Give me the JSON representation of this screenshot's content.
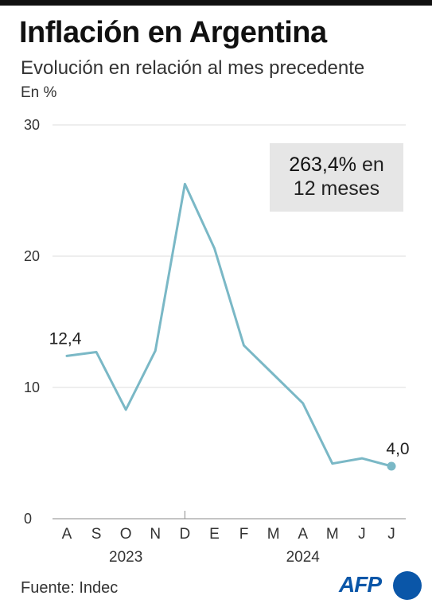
{
  "title": "Inflación en Argentina",
  "subtitle": "Evolución en relación al mes precedente",
  "unit_label": "En %",
  "callout": {
    "value": "263,4%",
    "suffix": " en",
    "line2": "12 meses"
  },
  "source": "Fuente: Indec",
  "logo": "AFP",
  "colors": {
    "line": "#7ab8c6",
    "grid": "#dddddd",
    "axis": "#888888",
    "text": "#333333",
    "logo": "#0a56a8"
  },
  "chart_data": {
    "type": "line",
    "categories": [
      "A",
      "S",
      "O",
      "N",
      "D",
      "E",
      "F",
      "M",
      "A",
      "M",
      "J",
      "J"
    ],
    "year_labels": [
      {
        "label": "2023",
        "from": 0,
        "to": 4
      },
      {
        "label": "2024",
        "from": 5,
        "to": 11
      }
    ],
    "year_divider_after": 4,
    "values": [
      12.4,
      12.7,
      8.3,
      12.8,
      25.5,
      20.6,
      13.2,
      11.0,
      8.8,
      4.2,
      4.6,
      4.0
    ],
    "ylim": [
      0,
      30
    ],
    "yticks": [
      0,
      10,
      20,
      30
    ],
    "ytick_labels": [
      "0",
      "10",
      "20",
      "30"
    ],
    "data_labels": [
      {
        "index": 0,
        "text": "12,4"
      },
      {
        "index": 11,
        "text": "4,0"
      }
    ],
    "end_marker": true,
    "grid": true
  }
}
